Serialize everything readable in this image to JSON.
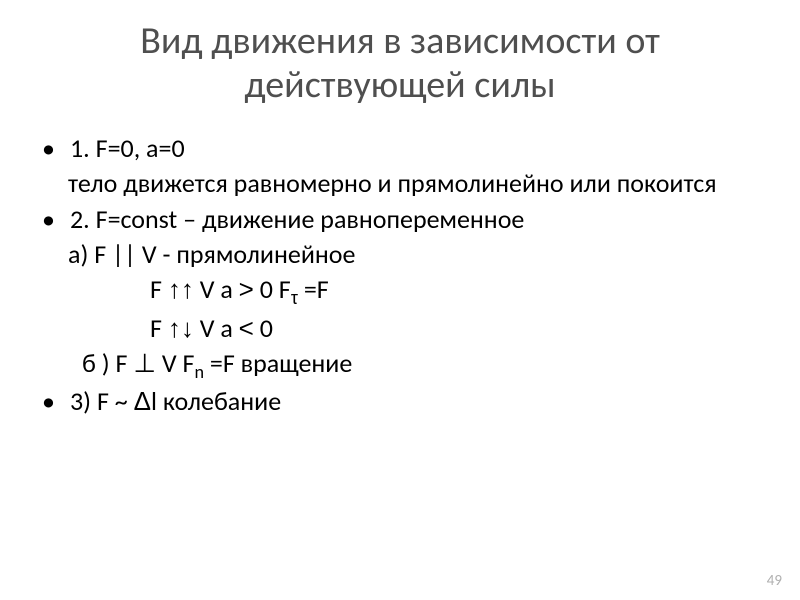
{
  "title": "Вид движения в зависимости от действующей силы",
  "lines": {
    "l1": "1. F=0, a=0",
    "l2": "тело движется равномерно и прямолинейно  или покоится",
    "l3": "2. F=const – движение равнопеременное",
    "l4": "а) F || V - прямолинейное",
    "l5_a": "F ",
    "l5_b": " V   a  ",
    "l5_gt": ">",
    "l5_c": " 0     F",
    "l5_tau": "τ",
    "l5_d": " =F",
    "l6_a": "F ",
    "l6_b": " V    a ",
    "l6_lt": "<",
    "l6_c": "  0",
    "l7_a": "б )   F ",
    "l7_perp": "⊥",
    "l7_b": " V   F",
    "l7_n": "n",
    "l7_c": "  =F     вращение",
    "l8_a": "3) F ~ ",
    "l8_delta": "Δ",
    "l8_b": "l   колебание"
  },
  "arrows": {
    "up": "↑↑",
    "down": "↑↓"
  },
  "pageNumber": "49",
  "style": {
    "background": "#ffffff",
    "titleColor": "#4f4f4f",
    "textColor": "#000000",
    "pageNumColor": "#b0b0b0",
    "titleFontSize": 38,
    "bodyFontSize": 26
  }
}
